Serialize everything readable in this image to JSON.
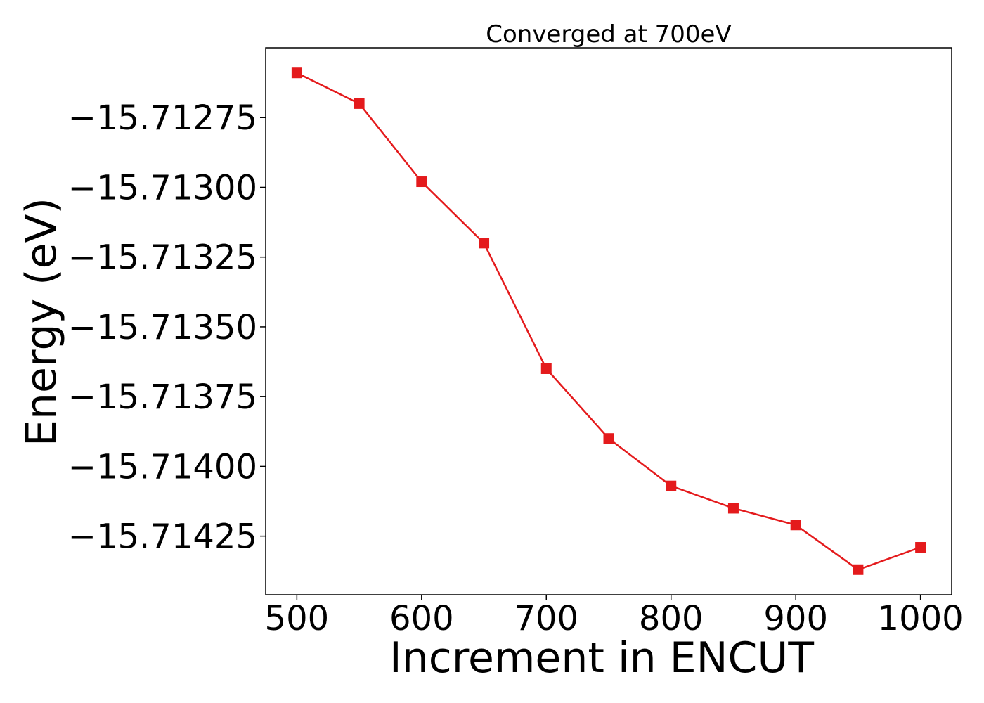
{
  "chart_data": {
    "type": "line",
    "title": "Converged at 700eV",
    "xlabel": "Increment in ENCUT",
    "ylabel": "Energy (eV)",
    "x": [
      500,
      550,
      600,
      650,
      700,
      750,
      800,
      850,
      900,
      950,
      1000
    ],
    "series": [
      {
        "color": "#e41a1c",
        "marker": "square",
        "values": [
          -15.71259,
          -15.7127,
          -15.71298,
          -15.7132,
          -15.71365,
          -15.7139,
          -15.71407,
          -15.71415,
          -15.71421,
          -15.71437,
          -15.71429
        ]
      }
    ],
    "xlim": [
      475,
      1025
    ],
    "ylim": [
      -15.71446,
      -15.7125
    ],
    "xticks": [
      500,
      600,
      700,
      800,
      900,
      1000
    ],
    "xtick_labels": [
      "500",
      "600",
      "700",
      "800",
      "900",
      "1000"
    ],
    "yticks": [
      -15.71275,
      -15.713,
      -15.71325,
      -15.7135,
      -15.71375,
      -15.714,
      -15.71425
    ],
    "ytick_labels": [
      "−15.71275",
      "−15.71300",
      "−15.71325",
      "−15.71350",
      "−15.71375",
      "−15.71400",
      "−15.71425"
    ],
    "grid": false,
    "legend": "none"
  }
}
